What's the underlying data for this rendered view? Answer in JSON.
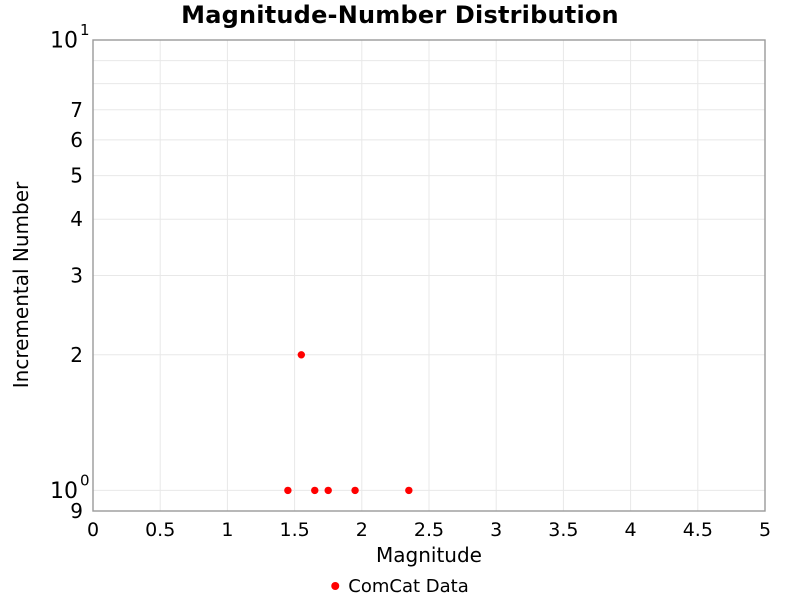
{
  "figure": {
    "background": "#FFFFFF",
    "text_color": "#000000",
    "axis_line_color": "#9A9A9A",
    "grid_color": "#E8E8E8"
  },
  "chart_data": {
    "type": "scatter",
    "title": "Magnitude-Number Distribution",
    "xlabel": "Magnitude",
    "ylabel": "Incremental Number",
    "xlim": [
      0,
      5
    ],
    "ylim": [
      0.9,
      10
    ],
    "xscale": "linear",
    "yscale": "log",
    "grid": true,
    "series": [
      {
        "name": "ComCat Data",
        "marker": "circle",
        "color": "#FF0000",
        "x": [
          1.45,
          1.55,
          1.65,
          1.75,
          1.95,
          2.35
        ],
        "y": [
          1,
          2,
          1,
          1,
          1,
          1
        ]
      }
    ],
    "x_axis": {
      "tick_values": [
        0,
        0.5,
        1,
        1.5,
        2,
        2.5,
        3,
        3.5,
        4,
        4.5,
        5
      ],
      "tick_labels": [
        "0",
        "0.5",
        "1",
        "1.5",
        "2",
        "2.5",
        "3",
        "3.5",
        "4",
        "4.5",
        "5"
      ]
    },
    "y_axis": {
      "major_ticks": [
        {
          "value": 10,
          "base": "10",
          "exponent": "1"
        },
        {
          "value": 1,
          "base": "10",
          "exponent": "0"
        }
      ],
      "minor_tick_labels": [
        {
          "value": 7,
          "label": "7"
        },
        {
          "value": 6,
          "label": "6"
        },
        {
          "value": 5,
          "label": "5"
        },
        {
          "value": 4,
          "label": "4"
        },
        {
          "value": 3,
          "label": "3"
        },
        {
          "value": 2,
          "label": "2"
        },
        {
          "value": 0.9,
          "label": "9"
        }
      ],
      "gridline_values": [
        9,
        8,
        7,
        6,
        5,
        4,
        3,
        2,
        1
      ]
    },
    "legend": {
      "position": "bottom-center",
      "entries": [
        {
          "label": "ComCat Data",
          "color": "#FF0000",
          "marker": "circle"
        }
      ]
    }
  }
}
